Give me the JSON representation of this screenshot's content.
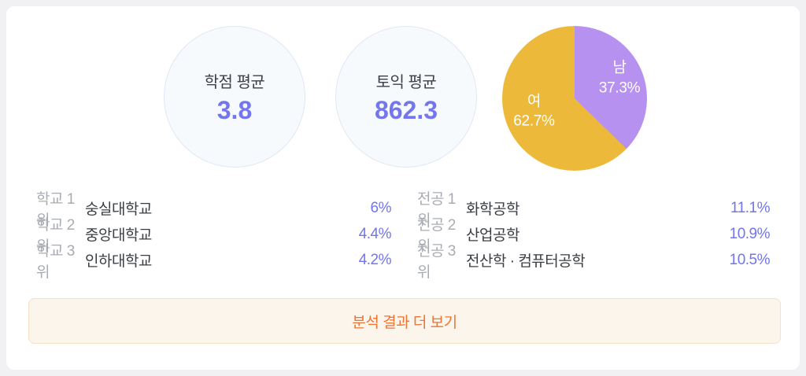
{
  "stats": [
    {
      "label": "학점 평균",
      "value": "3.8"
    },
    {
      "label": "토익 평균",
      "value": "862.3"
    }
  ],
  "gender_pie": {
    "slices": [
      {
        "label": "남",
        "percent": "37.3%",
        "value": 37.3,
        "color": "#B791F0"
      },
      {
        "label": "여",
        "percent": "62.7%",
        "value": 62.7,
        "color": "#ECB93B"
      }
    ]
  },
  "chart_data": {
    "type": "pie",
    "categories": [
      "남",
      "여"
    ],
    "values": [
      37.3,
      62.7
    ],
    "title": "",
    "legend_position": "labels-inside",
    "colors": [
      "#B791F0",
      "#ECB93B"
    ],
    "start_angle_deg": 0,
    "direction": "clockwise"
  },
  "rankings": {
    "schools": [
      {
        "rank_label": "학교 1위",
        "name": "숭실대학교",
        "percent": "6%"
      },
      {
        "rank_label": "학교 2위",
        "name": "중앙대학교",
        "percent": "4.4%"
      },
      {
        "rank_label": "학교 3위",
        "name": "인하대학교",
        "percent": "4.2%"
      }
    ],
    "majors": [
      {
        "rank_label": "전공 1위",
        "name": "화학공학",
        "percent": "11.1%"
      },
      {
        "rank_label": "전공 2위",
        "name": "산업공학",
        "percent": "10.9%"
      },
      {
        "rank_label": "전공 3위",
        "name": "전산학 · 컴퓨터공학",
        "percent": "10.5%"
      }
    ]
  },
  "button": {
    "label": "분석 결과 더 보기"
  },
  "colors": {
    "page_background": "#F1F1F3",
    "card_background": "#FFFFFF",
    "stat_circle_fill": "#F7FAFD",
    "stat_circle_border": "#E2E5F7",
    "accent_purple": "#7376EE",
    "pie_male_purple": "#B791F0",
    "pie_female_yellow": "#ECB93B",
    "rank_label_gray": "#A9ACB3",
    "rank_name_dark": "#3A3D44",
    "button_background": "#FCF5EB",
    "button_border": "#F5E0C8",
    "button_text_orange": "#EE7433"
  }
}
